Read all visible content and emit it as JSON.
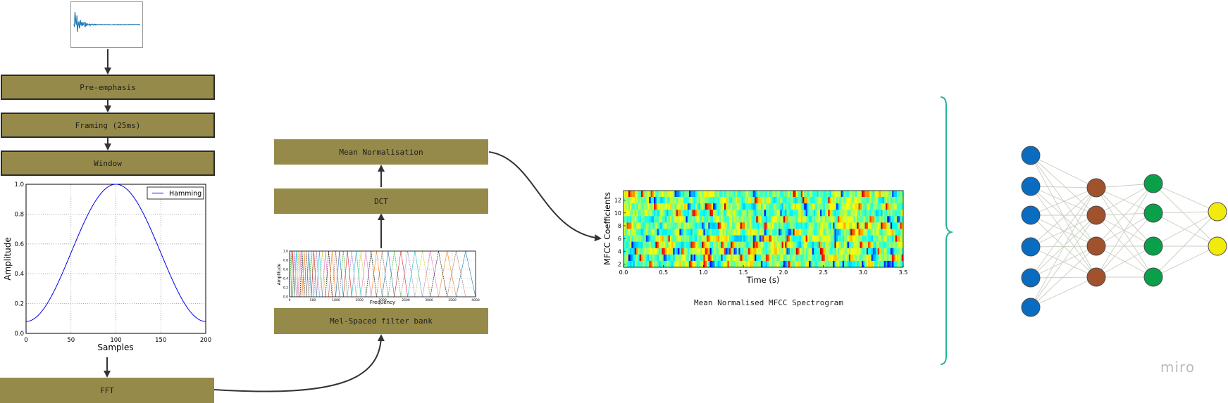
{
  "colors": {
    "block": "#958a4a",
    "brace": "#26b39a",
    "input_node": "#0a6cc0",
    "hidden1_node": "#a0522d",
    "hidden2_node": "#0aa04a",
    "output_node": "#f2ea0a"
  },
  "pipeline": {
    "pre_emphasis": "Pre-emphasis",
    "framing": "Framing (25ms)",
    "window": "Window",
    "fft": "FFT",
    "mel_filter_bank": "Mel-Spaced filter bank",
    "dct": "DCT",
    "mean_normalisation": "Mean Normalisation"
  },
  "hamming_plot": {
    "legend": "Hamming",
    "xlabel": "Samples",
    "ylabel": "Amplitude",
    "x_ticks": [
      "0",
      "50",
      "100",
      "150",
      "200"
    ],
    "y_ticks": [
      "0.0",
      "0.2",
      "0.4",
      "0.6",
      "0.8",
      "1.0"
    ]
  },
  "filterbank_plot": {
    "xlabel": "Frequency",
    "ylabel": "Amplitude",
    "x_ticks": [
      "0",
      "500",
      "1000",
      "1500",
      "2000",
      "2500",
      "3000",
      "3500",
      "4000"
    ],
    "y_ticks": [
      "0.0",
      "0.2",
      "0.4",
      "0.6",
      "0.8",
      "1.0"
    ]
  },
  "mfcc_plot": {
    "xlabel": "Time (s)",
    "ylabel": "MFCC Coefficients",
    "x_ticks": [
      "0.0",
      "0.5",
      "1.0",
      "1.5",
      "2.0",
      "2.5",
      "3.0",
      "3.5"
    ],
    "y_ticks": [
      "2",
      "4",
      "6",
      "8",
      "10",
      "12"
    ],
    "caption": "Mean Normalised MFCC Spectrogram"
  },
  "network": {
    "layer_sizes": [
      6,
      4,
      4,
      2
    ]
  },
  "watermark": "miro",
  "chart_data": [
    {
      "type": "line",
      "series": [
        {
          "name": "Hamming",
          "x": [
            0,
            25,
            50,
            75,
            100,
            125,
            150,
            175,
            200
          ],
          "values": [
            0.08,
            0.22,
            0.54,
            0.86,
            1.0,
            0.86,
            0.54,
            0.22,
            0.08
          ]
        }
      ],
      "xlabel": "Samples",
      "ylabel": "Amplitude",
      "xlim": [
        0,
        200
      ],
      "ylim": [
        0.0,
        1.0
      ],
      "grid": true,
      "legend": "top-right"
    },
    {
      "type": "line",
      "xlabel": "Frequency",
      "ylabel": "Amplitude",
      "xlim": [
        0,
        4000
      ],
      "ylim": [
        0.0,
        1.0
      ],
      "filters": 40,
      "filter_peak": 1.0
    },
    {
      "type": "heatmap",
      "xlabel": "Time (s)",
      "ylabel": "MFCC Coefficients",
      "xlim": [
        0.0,
        3.5
      ],
      "ylim": [
        1,
        13
      ],
      "rows": 12,
      "colormap": "jet"
    }
  ]
}
